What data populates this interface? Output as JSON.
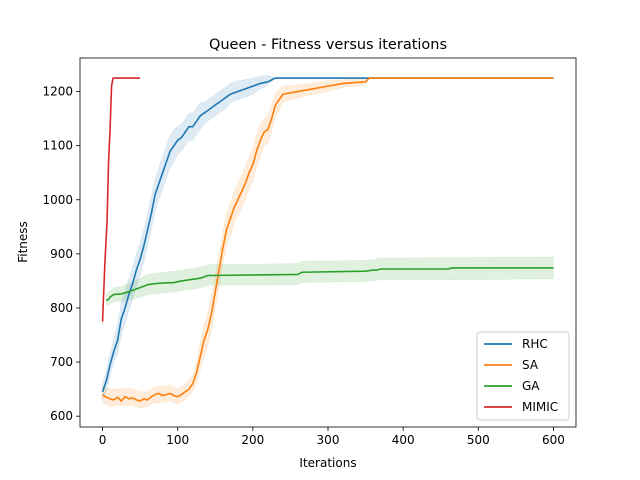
{
  "chart_data": {
    "type": "line",
    "title": "Queen - Fitness versus iterations",
    "xlabel": "Iterations",
    "ylabel": "Fitness",
    "xlim": [
      -30,
      630
    ],
    "ylim": [
      580,
      1262
    ],
    "xticks": [
      0,
      100,
      200,
      300,
      400,
      500,
      600
    ],
    "yticks": [
      600,
      700,
      800,
      900,
      1000,
      1100,
      1200
    ],
    "grid": false,
    "legend_position": "lower-right",
    "series": [
      {
        "name": "RHC",
        "color": "#1f77b4",
        "band_color": "#1f77b4",
        "points": [
          [
            0,
            645
          ],
          [
            5,
            665
          ],
          [
            10,
            695
          ],
          [
            15,
            720
          ],
          [
            20,
            740
          ],
          [
            25,
            780
          ],
          [
            30,
            800
          ],
          [
            35,
            825
          ],
          [
            40,
            845
          ],
          [
            45,
            870
          ],
          [
            50,
            890
          ],
          [
            55,
            915
          ],
          [
            60,
            945
          ],
          [
            65,
            975
          ],
          [
            70,
            1010
          ],
          [
            75,
            1030
          ],
          [
            80,
            1050
          ],
          [
            85,
            1070
          ],
          [
            90,
            1090
          ],
          [
            95,
            1100
          ],
          [
            100,
            1110
          ],
          [
            105,
            1115
          ],
          [
            110,
            1125
          ],
          [
            115,
            1135
          ],
          [
            120,
            1135
          ],
          [
            125,
            1145
          ],
          [
            130,
            1155
          ],
          [
            135,
            1160
          ],
          [
            140,
            1165
          ],
          [
            145,
            1170
          ],
          [
            150,
            1175
          ],
          [
            155,
            1180
          ],
          [
            160,
            1185
          ],
          [
            165,
            1190
          ],
          [
            170,
            1195
          ],
          [
            180,
            1200
          ],
          [
            190,
            1205
          ],
          [
            200,
            1210
          ],
          [
            210,
            1215
          ],
          [
            220,
            1218
          ],
          [
            230,
            1225
          ],
          [
            250,
            1225
          ],
          [
            300,
            1225
          ],
          [
            350,
            1225
          ],
          [
            400,
            1225
          ],
          [
            450,
            1225
          ],
          [
            500,
            1225
          ],
          [
            550,
            1225
          ],
          [
            600,
            1225
          ]
        ],
        "band": [
          [
            0,
            630,
            660
          ],
          [
            5,
            645,
            685
          ],
          [
            10,
            675,
            715
          ],
          [
            15,
            700,
            745
          ],
          [
            20,
            715,
            770
          ],
          [
            25,
            750,
            810
          ],
          [
            30,
            770,
            830
          ],
          [
            35,
            795,
            855
          ],
          [
            40,
            815,
            875
          ],
          [
            45,
            840,
            900
          ],
          [
            50,
            860,
            920
          ],
          [
            55,
            885,
            945
          ],
          [
            60,
            915,
            975
          ],
          [
            65,
            945,
            1005
          ],
          [
            70,
            980,
            1040
          ],
          [
            75,
            1000,
            1060
          ],
          [
            80,
            1020,
            1080
          ],
          [
            85,
            1040,
            1100
          ],
          [
            90,
            1060,
            1120
          ],
          [
            95,
            1070,
            1130
          ],
          [
            100,
            1085,
            1135
          ],
          [
            105,
            1090,
            1140
          ],
          [
            110,
            1100,
            1150
          ],
          [
            115,
            1110,
            1160
          ],
          [
            120,
            1110,
            1160
          ],
          [
            125,
            1120,
            1170
          ],
          [
            130,
            1130,
            1180
          ],
          [
            135,
            1140,
            1180
          ],
          [
            140,
            1145,
            1185
          ],
          [
            145,
            1150,
            1190
          ],
          [
            150,
            1155,
            1195
          ],
          [
            155,
            1160,
            1200
          ],
          [
            160,
            1165,
            1205
          ],
          [
            165,
            1170,
            1210
          ],
          [
            170,
            1180,
            1215
          ],
          [
            180,
            1185,
            1220
          ],
          [
            190,
            1190,
            1222
          ],
          [
            200,
            1195,
            1225
          ],
          [
            210,
            1205,
            1228
          ],
          [
            220,
            1212,
            1230
          ],
          [
            230,
            1225,
            1225
          ],
          [
            600,
            1225,
            1225
          ]
        ]
      },
      {
        "name": "SA",
        "color": "#ff7f0e",
        "band_color": "#ff7f0e",
        "points": [
          [
            0,
            640
          ],
          [
            5,
            635
          ],
          [
            10,
            632
          ],
          [
            15,
            630
          ],
          [
            20,
            635
          ],
          [
            25,
            628
          ],
          [
            30,
            636
          ],
          [
            35,
            632
          ],
          [
            40,
            634
          ],
          [
            45,
            630
          ],
          [
            50,
            628
          ],
          [
            55,
            632
          ],
          [
            60,
            630
          ],
          [
            65,
            636
          ],
          [
            70,
            640
          ],
          [
            75,
            642
          ],
          [
            80,
            638
          ],
          [
            85,
            640
          ],
          [
            90,
            642
          ],
          [
            95,
            638
          ],
          [
            100,
            636
          ],
          [
            105,
            640
          ],
          [
            110,
            645
          ],
          [
            115,
            650
          ],
          [
            120,
            660
          ],
          [
            125,
            680
          ],
          [
            130,
            710
          ],
          [
            135,
            740
          ],
          [
            140,
            760
          ],
          [
            145,
            790
          ],
          [
            150,
            830
          ],
          [
            155,
            870
          ],
          [
            160,
            910
          ],
          [
            165,
            945
          ],
          [
            170,
            965
          ],
          [
            175,
            985
          ],
          [
            180,
            1000
          ],
          [
            185,
            1015
          ],
          [
            190,
            1030
          ],
          [
            195,
            1050
          ],
          [
            200,
            1065
          ],
          [
            205,
            1090
          ],
          [
            210,
            1110
          ],
          [
            215,
            1125
          ],
          [
            220,
            1130
          ],
          [
            225,
            1150
          ],
          [
            230,
            1175
          ],
          [
            235,
            1185
          ],
          [
            240,
            1195
          ],
          [
            260,
            1200
          ],
          [
            280,
            1205
          ],
          [
            300,
            1210
          ],
          [
            320,
            1215
          ],
          [
            350,
            1218
          ],
          [
            355,
            1225
          ],
          [
            400,
            1225
          ],
          [
            450,
            1225
          ],
          [
            500,
            1225
          ],
          [
            550,
            1225
          ],
          [
            600,
            1225
          ]
        ],
        "band": [
          [
            0,
            625,
            655
          ],
          [
            10,
            618,
            650
          ],
          [
            20,
            620,
            650
          ],
          [
            30,
            620,
            652
          ],
          [
            40,
            620,
            650
          ],
          [
            50,
            615,
            645
          ],
          [
            60,
            618,
            645
          ],
          [
            70,
            625,
            655
          ],
          [
            80,
            625,
            655
          ],
          [
            90,
            628,
            658
          ],
          [
            100,
            622,
            650
          ],
          [
            110,
            630,
            660
          ],
          [
            120,
            645,
            675
          ],
          [
            125,
            660,
            700
          ],
          [
            130,
            685,
            735
          ],
          [
            135,
            710,
            770
          ],
          [
            140,
            730,
            790
          ],
          [
            145,
            760,
            820
          ],
          [
            150,
            800,
            860
          ],
          [
            155,
            840,
            900
          ],
          [
            160,
            880,
            940
          ],
          [
            165,
            915,
            975
          ],
          [
            170,
            935,
            995
          ],
          [
            175,
            955,
            1015
          ],
          [
            180,
            970,
            1030
          ],
          [
            185,
            985,
            1045
          ],
          [
            190,
            1000,
            1060
          ],
          [
            195,
            1020,
            1080
          ],
          [
            200,
            1035,
            1095
          ],
          [
            205,
            1060,
            1120
          ],
          [
            210,
            1080,
            1140
          ],
          [
            215,
            1100,
            1150
          ],
          [
            220,
            1105,
            1155
          ],
          [
            225,
            1125,
            1175
          ],
          [
            230,
            1155,
            1195
          ],
          [
            235,
            1165,
            1205
          ],
          [
            240,
            1180,
            1210
          ],
          [
            260,
            1188,
            1212
          ],
          [
            280,
            1195,
            1215
          ],
          [
            300,
            1200,
            1220
          ],
          [
            320,
            1208,
            1222
          ],
          [
            350,
            1212,
            1225
          ],
          [
            355,
            1225,
            1225
          ],
          [
            600,
            1225,
            1225
          ]
        ]
      },
      {
        "name": "GA",
        "color": "#2ca02c",
        "band_color": "#2ca02c",
        "points": [
          [
            5,
            814
          ],
          [
            8,
            816
          ],
          [
            10,
            820
          ],
          [
            15,
            825
          ],
          [
            25,
            826
          ],
          [
            35,
            830
          ],
          [
            45,
            835
          ],
          [
            60,
            843
          ],
          [
            70,
            845
          ],
          [
            80,
            846
          ],
          [
            95,
            847
          ],
          [
            105,
            850
          ],
          [
            130,
            855
          ],
          [
            140,
            860
          ],
          [
            260,
            862
          ],
          [
            265,
            866
          ],
          [
            350,
            868
          ],
          [
            360,
            870
          ],
          [
            365,
            870
          ],
          [
            370,
            872
          ],
          [
            460,
            872
          ],
          [
            465,
            874
          ],
          [
            600,
            874
          ]
        ],
        "band": [
          [
            5,
            805,
            825
          ],
          [
            10,
            808,
            832
          ],
          [
            15,
            812,
            838
          ],
          [
            25,
            812,
            840
          ],
          [
            35,
            815,
            845
          ],
          [
            45,
            818,
            852
          ],
          [
            60,
            825,
            862
          ],
          [
            70,
            826,
            864
          ],
          [
            80,
            828,
            866
          ],
          [
            95,
            830,
            868
          ],
          [
            105,
            832,
            870
          ],
          [
            130,
            837,
            875
          ],
          [
            140,
            842,
            880
          ],
          [
            260,
            843,
            882
          ],
          [
            265,
            847,
            886
          ],
          [
            350,
            849,
            888
          ],
          [
            370,
            852,
            892
          ],
          [
            460,
            852,
            893
          ],
          [
            600,
            854,
            894
          ]
        ]
      },
      {
        "name": "MIMIC",
        "color": "#d62728",
        "band_color": "#d62728",
        "points": [
          [
            0,
            775
          ],
          [
            3,
            880
          ],
          [
            6,
            960
          ],
          [
            8,
            1070
          ],
          [
            10,
            1130
          ],
          [
            12,
            1210
          ],
          [
            14,
            1225
          ],
          [
            20,
            1225
          ],
          [
            30,
            1225
          ],
          [
            40,
            1225
          ],
          [
            50,
            1225
          ]
        ],
        "band": [
          [
            0,
            770,
            780
          ],
          [
            3,
            870,
            890
          ],
          [
            6,
            950,
            970
          ],
          [
            8,
            1060,
            1080
          ],
          [
            10,
            1120,
            1140
          ],
          [
            12,
            1205,
            1215
          ],
          [
            14,
            1225,
            1225
          ],
          [
            50,
            1225,
            1225
          ]
        ]
      }
    ]
  }
}
